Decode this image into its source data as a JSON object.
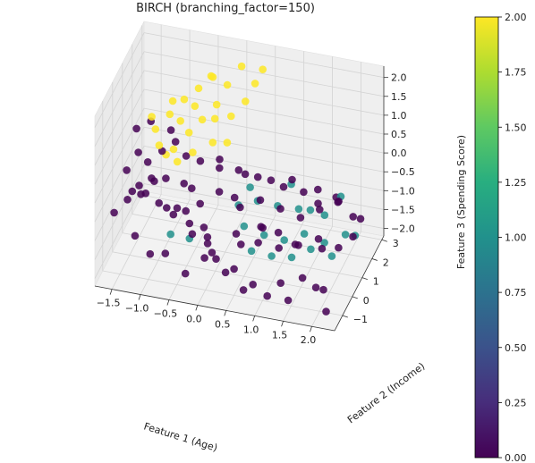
{
  "chart_data": {
    "type": "scatter",
    "projection": "3d",
    "title": "BIRCH (branching_factor=150)",
    "xlabel": "Feature 1 (Age)",
    "ylabel": "Feature 2 (Income)",
    "zlabel": "Feature 3 (Spending Score)",
    "xlim": [
      -1.8,
      2.4
    ],
    "ylim": [
      -1.8,
      3.2
    ],
    "zlim": [
      -2.2,
      2.3
    ],
    "xticks": [
      "−1.5",
      "−1.0",
      "−0.5",
      "0.0",
      "0.5",
      "1.0",
      "1.5",
      "2.0"
    ],
    "yticks": [
      "−1",
      "0",
      "1",
      "2",
      "3"
    ],
    "zticks": [
      "−2.0",
      "−1.5",
      "−1.0",
      "−0.5",
      "0.0",
      "0.5",
      "1.0",
      "1.5",
      "2.0"
    ],
    "grid": true,
    "colormap": "viridis",
    "colorbar": {
      "min": 0.0,
      "max": 2.0,
      "ticks": [
        "0.00",
        "0.25",
        "0.50",
        "0.75",
        "1.00",
        "1.25",
        "1.50",
        "1.75",
        "2.00"
      ]
    },
    "cluster_colors": [
      "#440154",
      "#21918c",
      "#fde725"
    ],
    "point_columns": [
      "x",
      "y",
      "z",
      "cluster"
    ],
    "points": [
      [
        -1.6,
        -1.0,
        -0.6,
        0
      ],
      [
        -1.4,
        -0.8,
        -0.3,
        0
      ],
      [
        -1.3,
        -0.9,
        0.0,
        0
      ],
      [
        -1.2,
        -0.6,
        -0.2,
        0
      ],
      [
        -1.1,
        -0.7,
        -0.1,
        0
      ],
      [
        -1.0,
        -0.4,
        0.1,
        0
      ],
      [
        -0.9,
        -0.5,
        -0.4,
        0
      ],
      [
        -1.5,
        -0.3,
        0.2,
        0
      ],
      [
        -1.3,
        -0.2,
        -0.2,
        0
      ],
      [
        -1.1,
        -0.1,
        0.0,
        0
      ],
      [
        -0.8,
        -0.3,
        -0.6,
        0
      ],
      [
        -0.7,
        -0.2,
        -0.8,
        0
      ],
      [
        -0.6,
        -0.4,
        -0.5,
        0
      ],
      [
        -0.5,
        -0.1,
        -0.7,
        0
      ],
      [
        -0.4,
        -0.3,
        -0.9,
        0
      ],
      [
        -0.9,
        0.2,
        -0.1,
        0
      ],
      [
        -1.2,
        0.1,
        0.3,
        0
      ],
      [
        -1.4,
        0.3,
        0.4,
        0
      ],
      [
        -1.0,
        0.4,
        0.5,
        0
      ],
      [
        -0.8,
        0.6,
        0.7,
        0
      ],
      [
        -0.6,
        0.3,
        -0.2,
        0
      ],
      [
        -0.5,
        0.5,
        -0.4,
        0
      ],
      [
        -0.3,
        0.2,
        -0.6,
        0
      ],
      [
        -0.2,
        0.0,
        -1.1,
        0
      ],
      [
        -0.1,
        -0.2,
        -1.4,
        0
      ],
      [
        0.1,
        -0.5,
        -1.6,
        0
      ],
      [
        0.3,
        -0.7,
        -1.8,
        0
      ],
      [
        0.5,
        -1.0,
        -1.5,
        0
      ],
      [
        0.7,
        -1.2,
        -1.9,
        0
      ],
      [
        0.9,
        -1.4,
        -1.6,
        0
      ],
      [
        1.1,
        -1.1,
        -2.0,
        0
      ],
      [
        1.3,
        -0.9,
        -1.7,
        0
      ],
      [
        1.5,
        -1.3,
        -1.9,
        0
      ],
      [
        1.7,
        -1.0,
        -1.4,
        0
      ],
      [
        1.9,
        -0.8,
        -1.7,
        0
      ],
      [
        2.1,
        -1.2,
        -1.5,
        0
      ],
      [
        2.2,
        -1.5,
        -1.9,
        0
      ],
      [
        1.2,
        -0.5,
        -1.0,
        0
      ],
      [
        0.8,
        0.0,
        -0.8,
        0
      ],
      [
        0.4,
        0.2,
        -0.5,
        0
      ],
      [
        0.0,
        0.4,
        -0.3,
        0
      ],
      [
        0.2,
        0.8,
        -0.6,
        0
      ],
      [
        0.6,
        1.1,
        -0.7,
        0
      ],
      [
        0.9,
        1.4,
        -1.0,
        0
      ],
      [
        1.2,
        1.7,
        -1.3,
        0
      ],
      [
        1.5,
        1.9,
        -1.1,
        0
      ],
      [
        1.8,
        2.1,
        -0.9,
        0
      ],
      [
        2.0,
        2.4,
        -1.4,
        0
      ],
      [
        1.7,
        2.6,
        -1.2,
        0
      ],
      [
        1.4,
        2.3,
        -0.8,
        0
      ],
      [
        1.0,
        2.0,
        -0.5,
        0
      ],
      [
        0.7,
        1.6,
        -0.4,
        0
      ],
      [
        0.3,
        1.3,
        -0.2,
        0
      ],
      [
        -0.1,
        1.0,
        0.0,
        0
      ],
      [
        -0.4,
        0.8,
        0.2,
        0
      ],
      [
        -0.7,
        1.1,
        0.1,
        0
      ],
      [
        -1.0,
        1.3,
        0.6,
        0
      ],
      [
        -1.3,
        1.0,
        0.9,
        0
      ],
      [
        -1.5,
        0.7,
        0.8,
        0
      ],
      [
        -0.2,
        1.6,
        -0.1,
        0
      ],
      [
        0.1,
        1.8,
        -0.4,
        0
      ],
      [
        0.4,
        2.0,
        -0.6,
        0
      ],
      [
        0.8,
        2.3,
        -0.9,
        0
      ],
      [
        1.1,
        2.6,
        -1.1,
        0
      ],
      [
        1.3,
        2.9,
        -1.5,
        0
      ],
      [
        1.6,
        3.0,
        -1.3,
        0
      ],
      [
        -1.2,
        -1.2,
        -1.0,
        0
      ],
      [
        -0.9,
        -1.4,
        -1.3,
        0
      ],
      [
        -0.6,
        -1.6,
        -1.1,
        0
      ],
      [
        -0.3,
        -1.3,
        -1.7,
        0
      ],
      [
        0.0,
        -1.1,
        -1.3,
        0
      ],
      [
        0.2,
        -1.5,
        -0.9,
        0
      ],
      [
        0.5,
        -0.3,
        -1.2,
        0
      ],
      [
        0.7,
        0.3,
        -1.4,
        0
      ],
      [
        1.0,
        0.6,
        -1.2,
        0
      ],
      [
        1.3,
        0.9,
        -1.6,
        0
      ],
      [
        1.6,
        1.2,
        -1.5,
        0
      ],
      [
        1.9,
        1.5,
        -1.8,
        0
      ],
      [
        2.1,
        1.8,
        -1.6,
        0
      ],
      [
        2.2,
        2.0,
        -1.2,
        0
      ],
      [
        0.0,
        -0.8,
        -0.9,
        0
      ],
      [
        -0.3,
        -0.6,
        -1.0,
        0
      ],
      [
        0.4,
        -0.2,
        -1.0,
        0
      ],
      [
        0.9,
        -0.4,
        -0.6,
        0
      ],
      [
        1.4,
        0.0,
        -1.1,
        0
      ],
      [
        1.8,
        0.4,
        -1.3,
        0
      ],
      [
        0.4,
        0.6,
        -1.2,
        1
      ],
      [
        0.7,
        0.9,
        -1.5,
        1
      ],
      [
        1.0,
        1.2,
        -1.7,
        1
      ],
      [
        1.3,
        1.5,
        -1.6,
        1
      ],
      [
        1.6,
        1.8,
        -1.9,
        1
      ],
      [
        1.9,
        2.2,
        -1.8,
        1
      ],
      [
        2.0,
        2.6,
        -2.0,
        1
      ],
      [
        1.5,
        2.4,
        -1.5,
        1
      ],
      [
        1.1,
        2.1,
        -1.3,
        1
      ],
      [
        0.8,
        1.7,
        -1.1,
        1
      ],
      [
        0.5,
        1.4,
        -0.9,
        1
      ],
      [
        0.2,
        1.2,
        -1.0,
        1
      ],
      [
        0.6,
        0.2,
        -1.6,
        1
      ],
      [
        0.9,
        0.5,
        -1.8,
        1
      ],
      [
        1.2,
        0.8,
        -1.9,
        1
      ],
      [
        1.5,
        1.0,
        -1.7,
        1
      ],
      [
        1.8,
        1.4,
        -2.0,
        1
      ],
      [
        0.3,
        1.8,
        -0.8,
        1
      ],
      [
        0.9,
        2.5,
        -0.9,
        1
      ],
      [
        1.7,
        2.9,
        -1.2,
        1
      ],
      [
        -0.8,
        0.1,
        -1.5,
        1
      ],
      [
        -0.4,
        -0.3,
        -1.3,
        1
      ],
      [
        1.2,
        2.7,
        -1.6,
        1
      ],
      [
        -1.1,
        0.3,
        1.1,
        2
      ],
      [
        -0.9,
        0.6,
        1.4,
        2
      ],
      [
        -0.7,
        0.9,
        1.7,
        2
      ],
      [
        -0.5,
        1.2,
        1.9,
        2
      ],
      [
        -0.3,
        1.5,
        2.1,
        2
      ],
      [
        -0.1,
        1.8,
        1.8,
        2
      ],
      [
        0.1,
        2.1,
        2.2,
        2
      ],
      [
        -1.0,
        0.1,
        0.8,
        2
      ],
      [
        -0.8,
        0.4,
        0.6,
        2
      ],
      [
        -0.6,
        0.8,
        0.9,
        2
      ],
      [
        -0.4,
        1.0,
        1.2,
        2
      ],
      [
        -0.2,
        1.3,
        1.5,
        2
      ],
      [
        0.0,
        1.6,
        1.1,
        2
      ],
      [
        0.2,
        1.9,
        1.4,
        2
      ],
      [
        -1.2,
        0.5,
        1.3,
        2
      ],
      [
        -0.9,
        0.9,
        1.6,
        2
      ],
      [
        -0.6,
        1.4,
        1.3,
        2
      ],
      [
        -0.3,
        1.7,
        0.9,
        2
      ],
      [
        0.3,
        2.3,
        1.7,
        2
      ],
      [
        -0.7,
        0.2,
        0.4,
        2
      ],
      [
        -0.5,
        0.6,
        0.5,
        2
      ],
      [
        -0.2,
        0.9,
        0.7,
        2
      ],
      [
        0.0,
        1.2,
        0.6,
        2
      ],
      [
        -0.8,
        1.1,
        1.0,
        2
      ],
      [
        -1.0,
        0.8,
        0.2,
        2
      ],
      [
        -0.4,
        1.9,
        1.9,
        2
      ],
      [
        0.4,
        2.5,
        2.0,
        2
      ]
    ]
  }
}
